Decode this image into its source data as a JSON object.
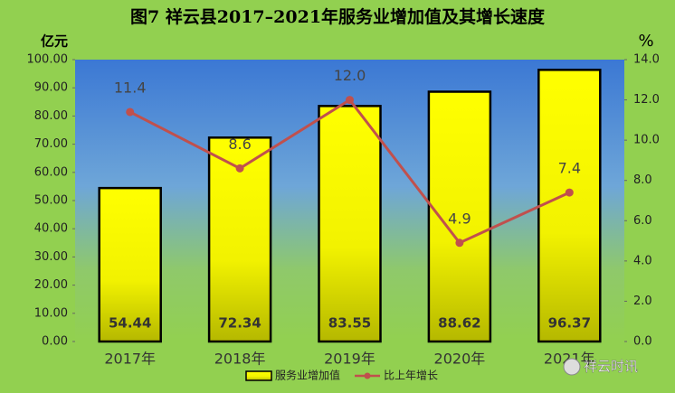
{
  "chart_data": {
    "type": "bar",
    "title": "图7  祥云县2017–2021年服务业增加值及其增长速度",
    "y_label": "亿元",
    "y2_label": "%",
    "categories": [
      "2017年",
      "2018年",
      "2019年",
      "2020年",
      "2021年"
    ],
    "series": [
      {
        "name": "服务业增加值",
        "color": "#ffff00",
        "values": [
          54.44,
          72.34,
          83.55,
          88.62,
          96.37
        ]
      },
      {
        "name": "比上年增长",
        "type": "line",
        "axis": "y2",
        "color": "#c0504d",
        "values": [
          11.4,
          8.6,
          12.0,
          4.9,
          7.4
        ],
        "value_labels": [
          "11.4",
          "8.6",
          "12.0",
          "4.9",
          "7.4"
        ]
      }
    ],
    "ylim": [
      0,
      100
    ],
    "yticks": [
      {
        "value": 0,
        "label": "0.00"
      },
      {
        "value": 10,
        "label": "10.00"
      },
      {
        "value": 20,
        "label": "20.00"
      },
      {
        "value": 30,
        "label": "30.00"
      },
      {
        "value": 40,
        "label": "40.00"
      },
      {
        "value": 50,
        "label": "50.00"
      },
      {
        "value": 60,
        "label": "60.00"
      },
      {
        "value": 70,
        "label": "70.00"
      },
      {
        "value": 80,
        "label": "80.00"
      },
      {
        "value": 90,
        "label": "90.00"
      },
      {
        "value": 100,
        "label": "100.00"
      }
    ],
    "y2lim": [
      0,
      14
    ],
    "y2ticks": [
      {
        "value": 0,
        "label": "0.0"
      },
      {
        "value": 2,
        "label": "2.0"
      },
      {
        "value": 4,
        "label": "4.0"
      },
      {
        "value": 6,
        "label": "6.0"
      },
      {
        "value": 8,
        "label": "8.0"
      },
      {
        "value": 10,
        "label": "10.0"
      },
      {
        "value": 12,
        "label": "12.0"
      },
      {
        "value": 14,
        "label": "14.0"
      }
    ],
    "watermark": "祥云时讯"
  }
}
